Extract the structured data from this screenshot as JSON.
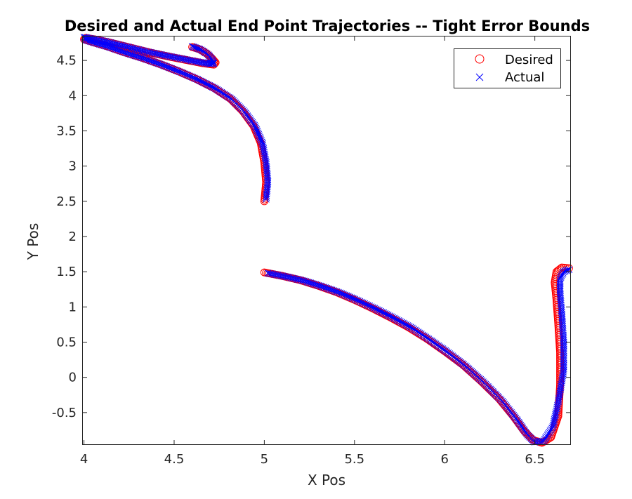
{
  "chart_data": {
    "type": "scatter",
    "title": "Desired and Actual End Point Trajectories -- Tight Error Bounds",
    "xlabel": "X Pos",
    "ylabel": "Y Pos",
    "xlim": [
      3.99,
      6.7
    ],
    "ylim": [
      -0.96,
      4.85
    ],
    "xticks": [
      4,
      4.5,
      5,
      5.5,
      6,
      6.5
    ],
    "xtick_labels": [
      "4",
      "4.5",
      "5",
      "5.5",
      "6",
      "6.5"
    ],
    "yticks": [
      -0.5,
      0,
      0.5,
      1,
      1.5,
      2,
      2.5,
      3,
      3.5,
      4,
      4.5
    ],
    "ytick_labels": [
      "-0.5",
      "0",
      "0.5",
      "1",
      "1.5",
      "2",
      "2.5",
      "3",
      "3.5",
      "4",
      "4.5"
    ],
    "grid": false,
    "legend_position": "top-right",
    "series": [
      {
        "name": "Desired",
        "marker": "circle",
        "color": "#ff0000",
        "segments": [
          [
            [
              4.6,
              4.69
            ],
            [
              4.64,
              4.66
            ],
            [
              4.68,
              4.6
            ],
            [
              4.71,
              4.53
            ],
            [
              4.73,
              4.47
            ],
            [
              4.72,
              4.44
            ],
            [
              4.66,
              4.46
            ],
            [
              4.58,
              4.5
            ],
            [
              4.48,
              4.55
            ],
            [
              4.37,
              4.61
            ],
            [
              4.26,
              4.68
            ],
            [
              4.15,
              4.75
            ],
            [
              4.06,
              4.8
            ],
            [
              4.01,
              4.82
            ],
            [
              4.0,
              4.8
            ],
            [
              4.05,
              4.76
            ],
            [
              4.13,
              4.7
            ],
            [
              4.22,
              4.62
            ],
            [
              4.32,
              4.54
            ],
            [
              4.42,
              4.45
            ],
            [
              4.52,
              4.35
            ],
            [
              4.62,
              4.24
            ],
            [
              4.72,
              4.11
            ],
            [
              4.81,
              3.96
            ],
            [
              4.88,
              3.78
            ],
            [
              4.94,
              3.57
            ],
            [
              4.98,
              3.33
            ],
            [
              5.0,
              3.05
            ],
            [
              5.01,
              2.77
            ],
            [
              5.0,
              2.5
            ]
          ],
          [
            [
              5.0,
              1.49
            ],
            [
              5.1,
              1.44
            ],
            [
              5.2,
              1.38
            ],
            [
              5.3,
              1.3
            ],
            [
              5.4,
              1.21
            ],
            [
              5.5,
              1.1
            ],
            [
              5.6,
              0.98
            ],
            [
              5.7,
              0.85
            ],
            [
              5.8,
              0.71
            ],
            [
              5.9,
              0.55
            ],
            [
              6.0,
              0.37
            ],
            [
              6.1,
              0.18
            ],
            [
              6.2,
              -0.05
            ],
            [
              6.3,
              -0.3
            ],
            [
              6.38,
              -0.55
            ],
            [
              6.44,
              -0.76
            ],
            [
              6.49,
              -0.89
            ],
            [
              6.54,
              -0.93
            ],
            [
              6.59,
              -0.85
            ],
            [
              6.63,
              -0.55
            ],
            [
              6.64,
              -0.1
            ],
            [
              6.64,
              0.35
            ],
            [
              6.63,
              0.75
            ],
            [
              6.62,
              1.1
            ],
            [
              6.61,
              1.35
            ],
            [
              6.62,
              1.5
            ],
            [
              6.65,
              1.56
            ],
            [
              6.69,
              1.55
            ]
          ]
        ]
      },
      {
        "name": "Actual",
        "marker": "x",
        "color": "#0000ff",
        "segments": [
          [
            [
              4.6,
              4.7
            ],
            [
              4.65,
              4.65
            ],
            [
              4.69,
              4.58
            ],
            [
              4.71,
              4.51
            ],
            [
              4.72,
              4.46
            ],
            [
              4.7,
              4.45
            ],
            [
              4.63,
              4.48
            ],
            [
              4.55,
              4.52
            ],
            [
              4.45,
              4.57
            ],
            [
              4.34,
              4.63
            ],
            [
              4.23,
              4.7
            ],
            [
              4.12,
              4.77
            ],
            [
              4.04,
              4.81
            ],
            [
              4.0,
              4.83
            ],
            [
              4.01,
              4.79
            ],
            [
              4.06,
              4.75
            ],
            [
              4.14,
              4.69
            ],
            [
              4.23,
              4.61
            ],
            [
              4.33,
              4.53
            ],
            [
              4.43,
              4.44
            ],
            [
              4.53,
              4.34
            ],
            [
              4.63,
              4.23
            ],
            [
              4.73,
              4.1
            ],
            [
              4.82,
              3.95
            ],
            [
              4.89,
              3.77
            ],
            [
              4.95,
              3.56
            ],
            [
              4.99,
              3.32
            ],
            [
              5.01,
              3.05
            ],
            [
              5.02,
              2.78
            ],
            [
              5.01,
              2.53
            ]
          ],
          [
            [
              5.02,
              1.48
            ],
            [
              5.12,
              1.43
            ],
            [
              5.22,
              1.37
            ],
            [
              5.32,
              1.29
            ],
            [
              5.42,
              1.2
            ],
            [
              5.52,
              1.09
            ],
            [
              5.62,
              0.97
            ],
            [
              5.72,
              0.84
            ],
            [
              5.82,
              0.7
            ],
            [
              5.92,
              0.53
            ],
            [
              6.02,
              0.35
            ],
            [
              6.12,
              0.15
            ],
            [
              6.22,
              -0.08
            ],
            [
              6.32,
              -0.34
            ],
            [
              6.4,
              -0.6
            ],
            [
              6.46,
              -0.82
            ],
            [
              6.5,
              -0.92
            ],
            [
              6.55,
              -0.9
            ],
            [
              6.6,
              -0.7
            ],
            [
              6.63,
              -0.35
            ],
            [
              6.66,
              0.1
            ],
            [
              6.66,
              0.5
            ],
            [
              6.65,
              0.9
            ],
            [
              6.64,
              1.2
            ],
            [
              6.64,
              1.4
            ],
            [
              6.66,
              1.5
            ],
            [
              6.69,
              1.53
            ]
          ]
        ]
      }
    ]
  }
}
